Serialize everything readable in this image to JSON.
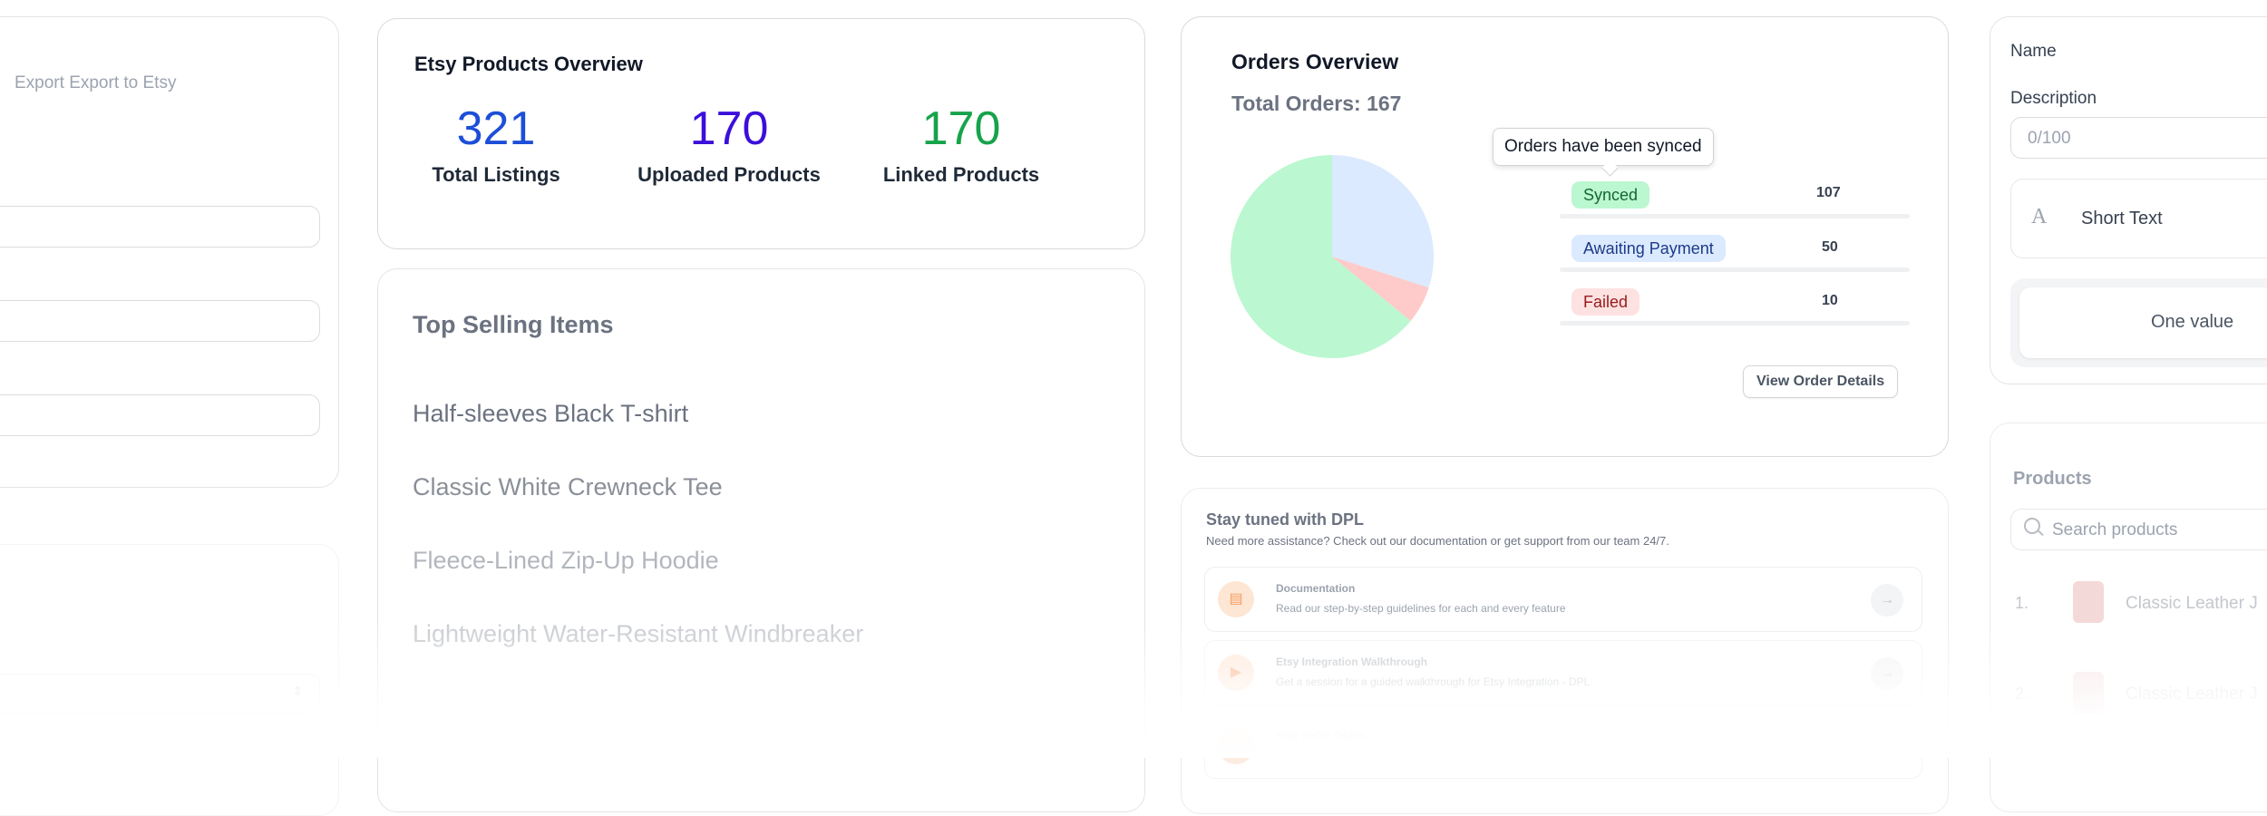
{
  "left_panel": {
    "export_label": "Export Export to Etsy"
  },
  "etsy_overview": {
    "title": "Etsy Products Overview",
    "stats": [
      {
        "value": "321",
        "label": "Total Listings",
        "color": "#1d4ed8"
      },
      {
        "value": "170",
        "label": "Uploaded Products",
        "color": "#3b0fd9"
      },
      {
        "value": "170",
        "label": "Linked Products",
        "color": "#16a34a"
      }
    ]
  },
  "top_selling": {
    "title": "Top Selling Items",
    "items": [
      "Half-sleeves Black T-shirt",
      "Classic White Crewneck Tee",
      "Fleece-Lined Zip-Up Hoodie",
      "Lightweight Water-Resistant Windbreaker"
    ]
  },
  "orders": {
    "title": "Orders Overview",
    "total": "Total Orders: 167",
    "tooltip": "Orders have been synced",
    "statuses": [
      {
        "label": "Synced",
        "count": "107",
        "bg": "#bbf7d0",
        "fg": "#166534"
      },
      {
        "label": "Awaiting Payment",
        "count": "50",
        "bg": "#dbeafe",
        "fg": "#1e3a8a"
      },
      {
        "label": "Failed",
        "count": "10",
        "bg": "#fee2e2",
        "fg": "#991b1b"
      }
    ],
    "view_button": "View Order Details"
  },
  "dpl": {
    "title": "Stay tuned with DPL",
    "subtitle": "Need more assistance? Check out our documentation or get support from our team 24/7.",
    "items": [
      {
        "title": "Documentation",
        "desc": "Read our step-by-step guidelines for each and every feature"
      },
      {
        "title": "Etsy Integration Walkthrough",
        "desc": "Get a session for a guided walkthrough for Etsy Integration - DPL"
      },
      {
        "title": "Etsy Seller Guide",
        "desc": ""
      }
    ]
  },
  "form": {
    "name_label": "Name",
    "description_label": "Description",
    "description_counter": "0/100",
    "short_text_label": "Short Text",
    "one_value_label": "One value"
  },
  "products": {
    "title": "Products",
    "search_placeholder": "Search products",
    "items": [
      {
        "index": "1.",
        "name": "Classic Leather J"
      },
      {
        "index": "2.",
        "name": "Classic Leather J"
      }
    ]
  },
  "chart_data": {
    "type": "pie",
    "categories": [
      "Synced",
      "Awaiting Payment",
      "Failed"
    ],
    "values": [
      107,
      50,
      10
    ],
    "colors": [
      "#bbf7d0",
      "#dbeafe",
      "#fecaca"
    ],
    "title": ""
  }
}
